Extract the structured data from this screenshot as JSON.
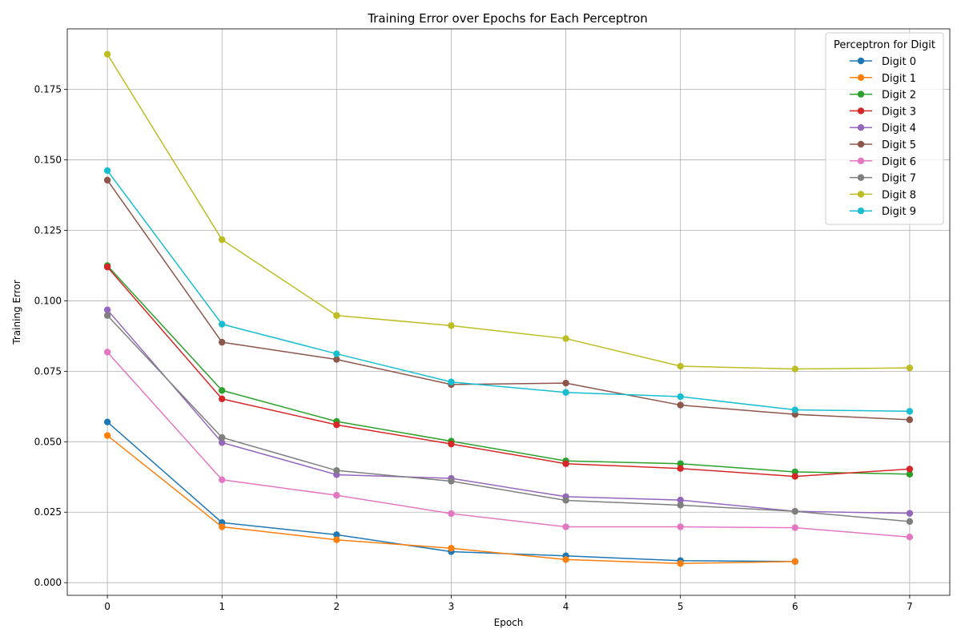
{
  "chart_data": {
    "type": "line",
    "title": "Training Error over Epochs for Each Perceptron",
    "xlabel": "Epoch",
    "ylabel": "Training Error",
    "xlim": [
      -0.35,
      7.35
    ],
    "ylim": [
      -0.0045,
      0.1965
    ],
    "xticks": [
      0,
      1,
      2,
      3,
      4,
      5,
      6,
      7
    ],
    "xtick_labels": [
      "0",
      "1",
      "2",
      "3",
      "4",
      "5",
      "6",
      "7"
    ],
    "yticks": [
      0.0,
      0.025,
      0.05,
      0.075,
      0.1,
      0.125,
      0.15,
      0.175
    ],
    "ytick_labels": [
      "0.000",
      "0.025",
      "0.050",
      "0.075",
      "0.100",
      "0.125",
      "0.150",
      "0.175"
    ],
    "grid": true,
    "legend": {
      "title": "Perceptron for Digit",
      "placement": "top-right"
    },
    "series": [
      {
        "name": "Digit 0",
        "color": "#1f77b4",
        "x": [
          0,
          1,
          2,
          3,
          4,
          5,
          6
        ],
        "y": [
          0.057,
          0.0213,
          0.017,
          0.011,
          0.0095,
          0.0078,
          0.0075
        ]
      },
      {
        "name": "Digit 1",
        "color": "#ff7f0e",
        "x": [
          0,
          1,
          2,
          3,
          4,
          5,
          6
        ],
        "y": [
          0.0522,
          0.0198,
          0.0152,
          0.0122,
          0.0082,
          0.0068,
          0.0075
        ]
      },
      {
        "name": "Digit 2",
        "color": "#2ca02c",
        "x": [
          0,
          1,
          2,
          3,
          4,
          5,
          6,
          7
        ],
        "y": [
          0.1125,
          0.0682,
          0.0572,
          0.0502,
          0.0432,
          0.0422,
          0.0393,
          0.0385
        ]
      },
      {
        "name": "Digit 3",
        "color": "#d62728",
        "x": [
          0,
          1,
          2,
          3,
          4,
          5,
          6,
          7
        ],
        "y": [
          0.112,
          0.0652,
          0.056,
          0.0492,
          0.0422,
          0.0405,
          0.0377,
          0.0403
        ]
      },
      {
        "name": "Digit 4",
        "color": "#9467bd",
        "x": [
          0,
          1,
          2,
          3,
          4,
          5,
          6,
          7
        ],
        "y": [
          0.0968,
          0.0497,
          0.0383,
          0.037,
          0.0305,
          0.0293,
          0.0253,
          0.0246
        ]
      },
      {
        "name": "Digit 5",
        "color": "#8c564b",
        "x": [
          0,
          1,
          2,
          3,
          4,
          5,
          6,
          7
        ],
        "y": [
          0.1428,
          0.0853,
          0.0792,
          0.0703,
          0.0708,
          0.063,
          0.0597,
          0.0578
        ]
      },
      {
        "name": "Digit 6",
        "color": "#e377c2",
        "x": [
          0,
          1,
          2,
          3,
          4,
          5,
          6,
          7
        ],
        "y": [
          0.0818,
          0.0365,
          0.031,
          0.0245,
          0.0198,
          0.0198,
          0.0195,
          0.0162
        ]
      },
      {
        "name": "Digit 7",
        "color": "#7f7f7f",
        "x": [
          0,
          1,
          2,
          3,
          4,
          5,
          6,
          7
        ],
        "y": [
          0.0948,
          0.0515,
          0.0398,
          0.036,
          0.0292,
          0.0275,
          0.0253,
          0.0217
        ]
      },
      {
        "name": "Digit 8",
        "color": "#bcbd22",
        "x": [
          0,
          1,
          2,
          3,
          4,
          5,
          6,
          7
        ],
        "y": [
          0.1875,
          0.1217,
          0.0948,
          0.0912,
          0.0866,
          0.0768,
          0.0758,
          0.0762
        ]
      },
      {
        "name": "Digit 9",
        "color": "#17becf",
        "x": [
          0,
          1,
          2,
          3,
          4,
          5,
          6,
          7
        ],
        "y": [
          0.1462,
          0.0917,
          0.0812,
          0.0712,
          0.0675,
          0.066,
          0.0613,
          0.0608
        ]
      }
    ]
  }
}
